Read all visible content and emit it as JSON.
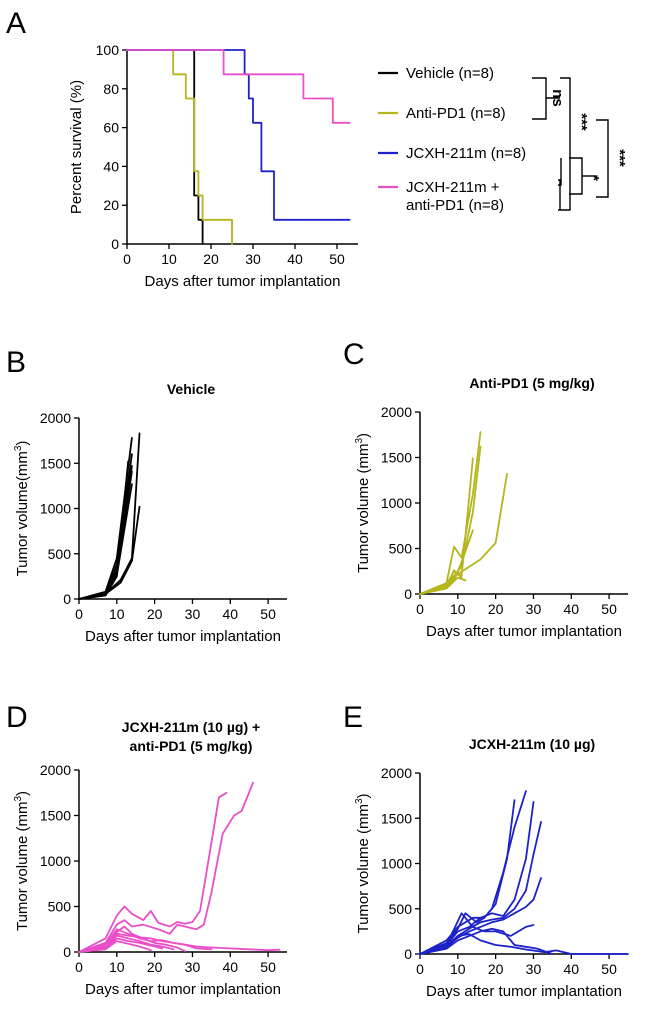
{
  "chart_data": [
    {
      "id": "A",
      "type": "line",
      "title": "",
      "xlabel": "Days after tumor implantation",
      "ylabel": "Percent survival (%)",
      "xlim": [
        0,
        55
      ],
      "ylim": [
        0,
        100
      ],
      "xticks": [
        "0",
        "10",
        "20",
        "30",
        "40",
        "50"
      ],
      "yticks": [
        "0",
        "20",
        "40",
        "60",
        "80",
        "100"
      ],
      "series": [
        {
          "name": "Vehicle (n=8)",
          "color": "#000000",
          "x": [
            0,
            16,
            16,
            17,
            17,
            18,
            18
          ],
          "y": [
            100,
            100,
            25,
            25,
            12.5,
            12.5,
            0
          ]
        },
        {
          "name": "Anti-PD1 (n=8)",
          "color": "#b5b51e",
          "x": [
            0,
            11,
            11,
            14,
            14,
            16,
            16,
            17,
            17,
            18,
            18,
            25,
            25
          ],
          "y": [
            100,
            100,
            87.5,
            87.5,
            75,
            75,
            37.5,
            37.5,
            25,
            25,
            12.5,
            12.5,
            0
          ]
        },
        {
          "name": "JCXH-211m (n=8)",
          "color": "#1d22c9",
          "x": [
            0,
            28,
            28,
            29,
            29,
            30,
            30,
            32,
            32,
            35,
            35,
            53
          ],
          "y": [
            100,
            100,
            87.5,
            87.5,
            75,
            75,
            62.5,
            62.5,
            37.5,
            37.5,
            12.5,
            12.5
          ]
        },
        {
          "name": "JCXH-211m +\nanti-PD1 (n=8)",
          "color": "#e94fc8",
          "x": [
            0,
            23,
            23,
            42,
            42,
            49,
            49,
            53
          ],
          "y": [
            100,
            100,
            87.5,
            87.5,
            75,
            75,
            62.5,
            62.5
          ]
        }
      ],
      "significance": [
        {
          "label": "ns",
          "between": [
            "Vehicle (n=8)",
            "Anti-PD1 (n=8)"
          ]
        },
        {
          "label": "***",
          "between": [
            "Vehicle (n=8)/Anti-PD1 (n=8)",
            "JCXH-211m (n=8)/JCXH-211m + anti-PD1 (n=8)"
          ]
        },
        {
          "label": "*",
          "between": [
            "JCXH-211m (n=8)",
            "JCXH-211m + anti-PD1 (n=8)"
          ]
        },
        {
          "label": "***",
          "between": [
            "Anti-PD1 (n=8)",
            "JCXH-211m + anti-PD1 (n=8)"
          ]
        }
      ]
    },
    {
      "id": "B",
      "type": "line",
      "title": "Vehicle",
      "color": "#000000",
      "xlabel": "Days after tumor implantation",
      "ylabel": "Tumor volume(mm",
      "ylabel_sup": "3",
      "ylabel_end": ")",
      "xlim": [
        0,
        55
      ],
      "ylim": [
        0,
        2000
      ],
      "xticks": [
        "0",
        "10",
        "20",
        "30",
        "40",
        "50"
      ],
      "yticks": [
        "0",
        "500",
        "1000",
        "1500",
        "2000"
      ],
      "series": [
        {
          "x": [
            0,
            7,
            10,
            14
          ],
          "y": [
            0,
            80,
            450,
            1780
          ]
        },
        {
          "x": [
            0,
            7,
            10,
            14
          ],
          "y": [
            0,
            60,
            380,
            1600
          ]
        },
        {
          "x": [
            0,
            7,
            10,
            14
          ],
          "y": [
            0,
            50,
            320,
            1470
          ]
        },
        {
          "x": [
            0,
            7,
            10,
            14
          ],
          "y": [
            0,
            45,
            300,
            1410
          ]
        },
        {
          "x": [
            0,
            7,
            10,
            14
          ],
          "y": [
            0,
            40,
            260,
            1270
          ]
        },
        {
          "x": [
            0,
            7,
            10,
            13
          ],
          "y": [
            0,
            40,
            250,
            1520
          ]
        },
        {
          "x": [
            0,
            7,
            11,
            14,
            16
          ],
          "y": [
            0,
            60,
            210,
            450,
            1830
          ]
        },
        {
          "x": [
            0,
            7,
            11,
            14,
            16
          ],
          "y": [
            0,
            55,
            180,
            420,
            1020
          ]
        }
      ]
    },
    {
      "id": "C",
      "type": "line",
      "title": "Anti-PD1 (5 mg/kg)",
      "color": "#b5b51e",
      "xlabel": "Days after tumor implantation",
      "ylabel": "Tumor volume (mm",
      "ylabel_sup": "3",
      "ylabel_end": ")",
      "xlim": [
        0,
        55
      ],
      "ylim": [
        0,
        2000
      ],
      "xticks": [
        "0",
        "10",
        "20",
        "30",
        "40",
        "50"
      ],
      "yticks": [
        "0",
        "500",
        "1000",
        "1500",
        "2000"
      ],
      "series": [
        {
          "x": [
            0,
            7,
            9,
            11,
            14,
            16
          ],
          "y": [
            0,
            120,
            520,
            400,
            1100,
            1780
          ]
        },
        {
          "x": [
            0,
            7,
            9,
            11,
            14
          ],
          "y": [
            0,
            100,
            250,
            200,
            1490
          ]
        },
        {
          "x": [
            0,
            7,
            9,
            11,
            14,
            16
          ],
          "y": [
            0,
            90,
            200,
            300,
            900,
            1620
          ]
        },
        {
          "x": [
            0,
            7,
            10,
            13,
            16,
            20,
            23
          ],
          "y": [
            0,
            80,
            220,
            300,
            380,
            560,
            1320
          ]
        },
        {
          "x": [
            0,
            7,
            9,
            11,
            14
          ],
          "y": [
            0,
            70,
            150,
            350,
            700
          ]
        },
        {
          "x": [
            0,
            7,
            10,
            12
          ],
          "y": [
            0,
            60,
            180,
            150
          ]
        },
        {
          "x": [
            0,
            7,
            9,
            11
          ],
          "y": [
            0,
            80,
            260,
            180
          ]
        }
      ]
    },
    {
      "id": "D",
      "type": "line",
      "title": "JCXH-211m (10 µg) +\nanti-PD1 (5 mg/kg)",
      "color": "#e94fc8",
      "xlabel": "Days after tumor implantation",
      "ylabel": "Tumor volume (mm",
      "ylabel_sup": "3",
      "ylabel_end": ")",
      "xlim": [
        0,
        55
      ],
      "ylim": [
        0,
        2000
      ],
      "xticks": [
        "0",
        "10",
        "20",
        "30",
        "40",
        "50"
      ],
      "yticks": [
        "0",
        "500",
        "1000",
        "1500",
        "2000"
      ],
      "series": [
        {
          "x": [
            0,
            7,
            10,
            12,
            14,
            17,
            19,
            21,
            24,
            26,
            28,
            30,
            32,
            35,
            37,
            39
          ],
          "y": [
            0,
            150,
            400,
            500,
            420,
            350,
            450,
            320,
            280,
            330,
            310,
            330,
            450,
            1200,
            1700,
            1750
          ]
        },
        {
          "x": [
            0,
            7,
            10,
            12,
            14,
            17,
            21,
            24,
            26,
            28,
            31,
            33,
            35,
            38,
            41,
            43,
            46
          ],
          "y": [
            0,
            100,
            300,
            350,
            280,
            300,
            250,
            200,
            300,
            280,
            250,
            300,
            650,
            1300,
            1500,
            1550,
            1860
          ]
        },
        {
          "x": [
            0,
            7,
            10,
            13,
            16,
            19,
            22,
            25,
            28,
            31,
            35,
            40,
            45,
            50,
            53
          ],
          "y": [
            0,
            80,
            250,
            200,
            150,
            120,
            130,
            100,
            80,
            60,
            50,
            40,
            30,
            20,
            25
          ]
        },
        {
          "x": [
            0,
            7,
            10,
            13,
            16,
            19,
            22,
            25,
            28,
            31,
            35
          ],
          "y": [
            0,
            60,
            200,
            180,
            160,
            150,
            120,
            100,
            80,
            40,
            30
          ]
        },
        {
          "x": [
            0,
            7,
            10,
            13,
            16,
            19,
            22,
            25
          ],
          "y": [
            0,
            50,
            180,
            150,
            120,
            80,
            60,
            30
          ]
        },
        {
          "x": [
            0,
            7,
            10,
            13,
            16,
            19,
            22
          ],
          "y": [
            0,
            40,
            150,
            120,
            100,
            70,
            40
          ]
        },
        {
          "x": [
            0,
            7,
            10,
            12,
            14,
            17,
            20,
            23,
            26,
            28
          ],
          "y": [
            0,
            50,
            220,
            280,
            200,
            150,
            100,
            80,
            50,
            10
          ]
        },
        {
          "x": [
            0,
            7,
            10,
            13,
            16,
            19
          ],
          "y": [
            0,
            30,
            120,
            90,
            60,
            20
          ]
        }
      ]
    },
    {
      "id": "E",
      "type": "line",
      "title": "JCXH-211m (10 µg)",
      "color": "#1d22c9",
      "xlabel": "Days after tumor implantation",
      "ylabel": "Tumor volume (mm",
      "ylabel_sup": "3",
      "ylabel_end": ")",
      "xlim": [
        0,
        55
      ],
      "ylim": [
        0,
        2000
      ],
      "xticks": [
        "0",
        "10",
        "20",
        "30",
        "40",
        "50"
      ],
      "yticks": [
        "0",
        "500",
        "1000",
        "1500",
        "2000"
      ],
      "series": [
        {
          "x": [
            0,
            7,
            10,
            14,
            17,
            19,
            22,
            25,
            28
          ],
          "y": [
            0,
            150,
            300,
            400,
            400,
            500,
            900,
            1400,
            1800
          ]
        },
        {
          "x": [
            0,
            7,
            10,
            12,
            15,
            17,
            20,
            23,
            25
          ],
          "y": [
            0,
            120,
            280,
            450,
            350,
            400,
            550,
            1050,
            1700
          ]
        },
        {
          "x": [
            0,
            7,
            10,
            13,
            16,
            19,
            22,
            25,
            28,
            30
          ],
          "y": [
            0,
            100,
            250,
            300,
            400,
            450,
            420,
            600,
            1050,
            1680
          ]
        },
        {
          "x": [
            0,
            7,
            10,
            13,
            16,
            19,
            22,
            25,
            28,
            30,
            32
          ],
          "y": [
            0,
            90,
            200,
            280,
            350,
            380,
            400,
            500,
            700,
            1100,
            1460
          ]
        },
        {
          "x": [
            0,
            7,
            10,
            13,
            16,
            19,
            22,
            25,
            28,
            30,
            32
          ],
          "y": [
            0,
            80,
            180,
            250,
            300,
            350,
            380,
            450,
            520,
            600,
            840
          ]
        },
        {
          "x": [
            0,
            7,
            11,
            14,
            17,
            20,
            24,
            28,
            30
          ],
          "y": [
            0,
            100,
            450,
            300,
            250,
            250,
            200,
            300,
            320
          ]
        },
        {
          "x": [
            0,
            7,
            10,
            13,
            16,
            19,
            22,
            25,
            28,
            31,
            35
          ],
          "y": [
            0,
            60,
            150,
            200,
            250,
            280,
            250,
            100,
            80,
            60,
            0
          ]
        },
        {
          "x": [
            0,
            7,
            10,
            13,
            16,
            20,
            24,
            28,
            33,
            36,
            40,
            50,
            55
          ],
          "y": [
            0,
            60,
            200,
            220,
            150,
            100,
            80,
            50,
            20,
            40,
            0,
            0,
            0
          ]
        }
      ]
    }
  ],
  "panel_labels": [
    "A",
    "B",
    "C",
    "D",
    "E"
  ],
  "xlabel_common": "Days after tumor implantation"
}
